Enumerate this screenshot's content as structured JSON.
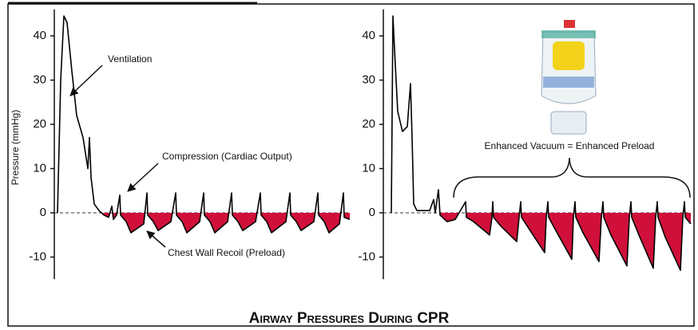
{
  "title": "Airway Pressures During CPR",
  "chart_data": [
    {
      "type": "line",
      "y_label": "Pressure (mmHg)",
      "ylim": [
        -15,
        46
      ],
      "yticks": [
        -10,
        0,
        10,
        20,
        30,
        40
      ],
      "xlim": [
        0,
        370
      ],
      "color": "#000000",
      "fill_color": "#d0103a",
      "annotations": [
        "Ventilation",
        "Compression (Cardiac Output)",
        "Chest Wall Recoil (Preload)"
      ],
      "x": [
        4,
        8,
        12,
        16,
        22,
        28,
        36,
        42,
        44,
        46,
        50,
        56,
        62,
        68,
        72,
        74,
        78,
        82,
        83,
        90,
        96,
        112,
        116,
        117,
        124,
        130,
        146,
        152,
        153,
        160,
        166,
        182,
        187,
        188,
        195,
        201,
        217,
        222,
        223,
        230,
        236,
        252,
        258,
        259,
        266,
        272,
        290,
        295,
        296,
        303,
        309,
        325,
        330,
        331,
        338,
        344,
        357,
        362,
        363,
        370
      ],
      "values": [
        0,
        30,
        44.5,
        43,
        32,
        22,
        17,
        10,
        17,
        8,
        2,
        0.5,
        -0.5,
        -1,
        1.5,
        -1.5,
        -0.5,
        4,
        -0.5,
        -2,
        -4.5,
        -2.5,
        4.5,
        -0.5,
        -2,
        -4,
        -2,
        4.5,
        -0.5,
        -2,
        -4.5,
        -2,
        4.5,
        -0.5,
        -2,
        -4.5,
        -2,
        4.5,
        -0.5,
        -2,
        -4,
        -2,
        4.5,
        -0.5,
        -2,
        -4.5,
        -2,
        4.5,
        -0.5,
        -2,
        -4,
        -2,
        4.5,
        -0.5,
        -2,
        -4.5,
        -2.5,
        4.5,
        -1,
        -1.5
      ]
    },
    {
      "type": "line",
      "ylim": [
        -15,
        46
      ],
      "yticks": [
        -10,
        0,
        10,
        20,
        30,
        40
      ],
      "xlim": [
        0,
        385
      ],
      "color": "#000000",
      "fill_color": "#d0103a",
      "annotations": [
        "Enhanced Vacuum = Enhanced Preload"
      ],
      "x": [
        10,
        12,
        14,
        18,
        24,
        30,
        34,
        36,
        38,
        42,
        50,
        58,
        63,
        65,
        69,
        71,
        80,
        90,
        103,
        104,
        113,
        133,
        136,
        137,
        138,
        147,
        167,
        170,
        172,
        173,
        182,
        202,
        204,
        206,
        207,
        216,
        236,
        238,
        240,
        241,
        250,
        270,
        273,
        275,
        276,
        285,
        305,
        308,
        310,
        311,
        320,
        338,
        341,
        343,
        344,
        353,
        372,
        375,
        377,
        378,
        385
      ],
      "values": [
        0,
        44.5,
        37,
        22.9,
        18.4,
        19.5,
        29.2,
        17,
        2,
        0.5,
        0.5,
        0.5,
        3,
        0,
        5.2,
        -0.5,
        -2,
        -1.5,
        2.5,
        -1,
        -2,
        -5,
        -1,
        2.5,
        -1,
        -3,
        -6.5,
        -1,
        2.5,
        -1,
        -3.5,
        -9,
        -1,
        2.5,
        -1,
        -4,
        -10.5,
        -1,
        2.5,
        -1,
        -4.5,
        -11,
        -1,
        2.5,
        -1,
        -5,
        -12,
        -1,
        2.5,
        -1,
        -5,
        -12.5,
        -1,
        2.5,
        -1,
        -5.5,
        -13,
        -1,
        2.5,
        -1,
        -2.5
      ]
    }
  ]
}
